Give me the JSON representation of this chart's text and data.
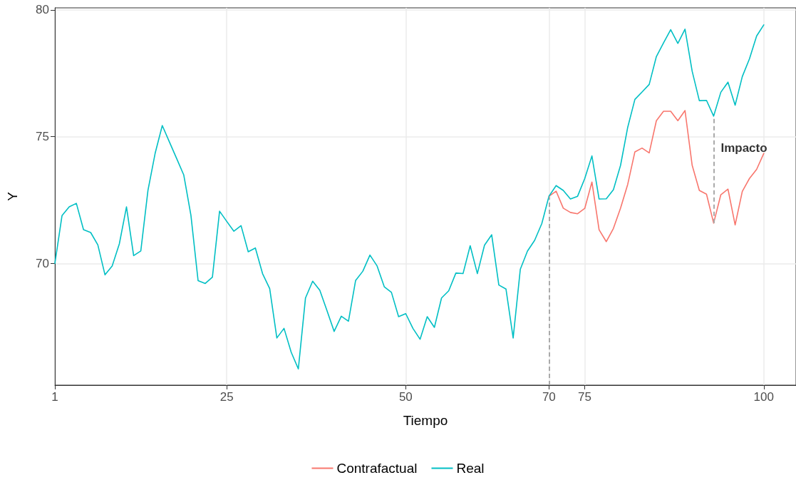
{
  "chart_data": {
    "type": "line",
    "xlabel": "Tiempo",
    "ylabel": "Y",
    "xlim": [
      1,
      104.5
    ],
    "xticks": [
      1,
      25,
      50,
      70,
      75,
      100
    ],
    "ylim": [
      65.2,
      80.08
    ],
    "yticks": [
      70,
      75,
      80
    ],
    "grid": true,
    "legend": "bottom",
    "marker": "none",
    "line_style": "solid",
    "ref_lines": [
      {
        "axis": "x",
        "value": 70,
        "label": null,
        "color": "#aaaaaa",
        "line_style": "dashed"
      },
      {
        "axis": "x",
        "value": 93,
        "label": "Impacto",
        "color": "#aaaaaa",
        "line_style": "dashed"
      }
    ],
    "series": [
      {
        "name": "Contrafactual",
        "color": "#f8766d",
        "x": [
          70,
          71,
          72,
          73,
          74,
          75,
          76,
          77,
          78,
          79,
          80,
          81,
          82,
          83,
          84,
          85,
          86,
          87,
          88,
          89,
          90,
          91,
          92,
          93,
          94,
          95,
          96,
          97,
          98,
          99,
          100
        ],
        "values": [
          72.65,
          72.85,
          72.18,
          72.01,
          71.96,
          72.17,
          73.21,
          71.33,
          70.86,
          71.38,
          72.18,
          73.12,
          74.4,
          74.55,
          74.36,
          75.63,
          76.0,
          76.0,
          75.63,
          76.03,
          73.87,
          72.88,
          72.73,
          71.59,
          72.71,
          72.93,
          71.52,
          72.84,
          73.35,
          73.71,
          74.34
        ]
      },
      {
        "name": "Real",
        "color": "#00bfc4",
        "x": [
          1,
          2,
          3,
          4,
          5,
          6,
          7,
          8,
          9,
          10,
          11,
          12,
          13,
          14,
          15,
          16,
          17,
          18,
          19,
          20,
          21,
          22,
          23,
          24,
          25,
          26,
          27,
          28,
          29,
          30,
          31,
          32,
          33,
          34,
          35,
          36,
          37,
          38,
          39,
          40,
          41,
          42,
          43,
          44,
          45,
          46,
          47,
          48,
          49,
          50,
          51,
          52,
          53,
          54,
          55,
          56,
          57,
          58,
          59,
          60,
          61,
          62,
          63,
          64,
          65,
          66,
          67,
          68,
          69,
          70,
          71,
          72,
          73,
          74,
          75,
          76,
          77,
          78,
          79,
          80,
          81,
          82,
          83,
          84,
          85,
          86,
          87,
          88,
          89,
          90,
          91,
          92,
          93,
          94,
          95,
          96,
          97,
          98,
          99,
          100
        ],
        "values": [
          70.0,
          71.89,
          72.23,
          72.37,
          71.33,
          71.22,
          70.73,
          69.55,
          69.9,
          70.77,
          72.23,
          70.31,
          70.49,
          72.88,
          74.34,
          75.44,
          74.79,
          74.14,
          73.49,
          71.9,
          69.32,
          69.21,
          69.46,
          72.06,
          71.66,
          71.27,
          71.49,
          70.46,
          70.61,
          69.6,
          69.01,
          67.06,
          67.44,
          66.5,
          65.84,
          68.64,
          69.3,
          68.94,
          68.14,
          67.32,
          67.92,
          67.72,
          69.33,
          69.69,
          70.33,
          69.9,
          69.08,
          68.86,
          67.9,
          68.02,
          67.44,
          67.01,
          67.9,
          67.48,
          68.64,
          68.92,
          69.62,
          69.6,
          70.7,
          69.6,
          70.72,
          71.13,
          69.15,
          68.99,
          67.06,
          69.77,
          70.49,
          70.91,
          71.57,
          72.65,
          73.07,
          72.88,
          72.54,
          72.65,
          73.35,
          74.24,
          72.54,
          72.55,
          72.91,
          73.87,
          75.37,
          76.47,
          76.76,
          77.06,
          78.16,
          78.7,
          79.22,
          78.68,
          79.24,
          77.58,
          76.42,
          76.43,
          75.81,
          76.75,
          77.15,
          76.24,
          77.37,
          78.07,
          78.97,
          79.41
        ]
      }
    ]
  }
}
